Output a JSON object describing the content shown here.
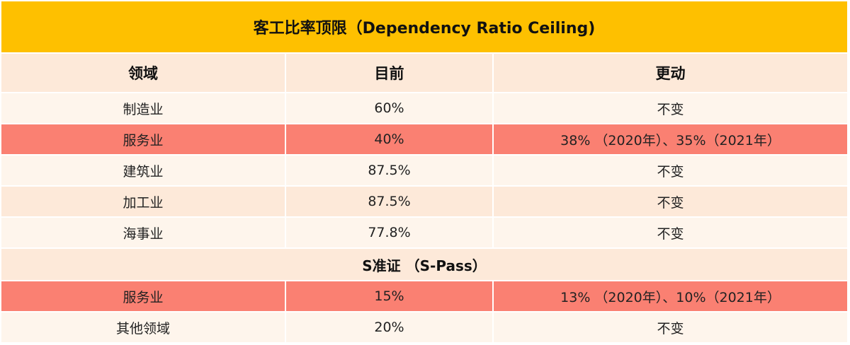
{
  "title": "客工比率顶限（Dependency Ratio Ceiling)",
  "headers": [
    "领域",
    "目前",
    "更动"
  ],
  "dependency_rows": [
    {
      "sector": "制造业",
      "current": "60%",
      "change": "不变",
      "highlight": false
    },
    {
      "sector": "服务业",
      "current": "40%",
      "change": "38% （2020年）、35%（2021年）",
      "highlight": true
    },
    {
      "sector": "建筑业",
      "current": "87.5%",
      "change": "不变",
      "highlight": false
    },
    {
      "sector": "加工业",
      "current": "87.5%",
      "change": "不变",
      "highlight": false
    },
    {
      "sector": "海事业",
      "current": "77.8%",
      "change": "不变",
      "highlight": false
    }
  ],
  "spass_section": {
    "label": "S准证 （S-Pass）"
  },
  "spass_rows": [
    {
      "sector": "服务业",
      "current": "15%",
      "change": "13% （2020年）、10%（2021年）",
      "highlight": true
    },
    {
      "sector": "其他领域",
      "current": "20%",
      "change": "不变",
      "highlight": false
    }
  ],
  "colors": {
    "title_bg": "#fec000",
    "header_bg": "#fde9d9",
    "row_light": "#fef5ec",
    "row_peach": "#fde9d9",
    "row_highlight": "#fa8072"
  }
}
